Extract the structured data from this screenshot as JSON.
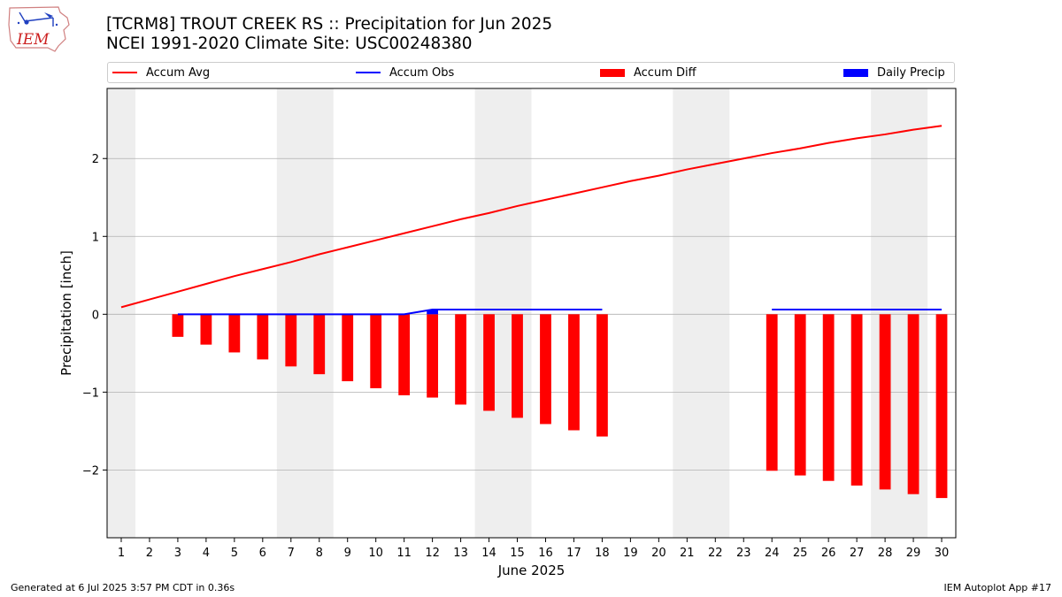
{
  "header": {
    "title": "[TCRM8] TROUT CREEK RS :: Precipitation for Jun 2025",
    "subtitle": "NCEI 1991-2020 Climate Site: USC00248380",
    "logo_text": "IEM"
  },
  "legend": {
    "items": [
      {
        "label": "Accum Avg",
        "kind": "line",
        "color": "#ff0000"
      },
      {
        "label": "Accum Obs",
        "kind": "line",
        "color": "#0000ff"
      },
      {
        "label": "Accum Diff",
        "kind": "box",
        "color": "#ff0000"
      },
      {
        "label": "Daily Precip",
        "kind": "box",
        "color": "#0000ff"
      }
    ]
  },
  "footer": {
    "left": "Generated at 6 Jul 2025 3:57 PM CDT in 0.36s",
    "right": "IEM Autoplot App #17"
  },
  "chart_data": {
    "type": "bar",
    "xlabel": "June 2025",
    "ylabel": "Precipitation [inch]",
    "xlim": [
      0.5,
      30.5
    ],
    "ylim": [
      -2.87,
      2.9
    ],
    "yticks": [
      -2,
      -1,
      0,
      1,
      2
    ],
    "ytick_labels": [
      "−2",
      "−1",
      "0",
      "1",
      "2"
    ],
    "categories": [
      "1",
      "2",
      "3",
      "4",
      "5",
      "6",
      "7",
      "8",
      "9",
      "10",
      "11",
      "12",
      "13",
      "14",
      "15",
      "16",
      "17",
      "18",
      "19",
      "20",
      "21",
      "22",
      "23",
      "24",
      "25",
      "26",
      "27",
      "28",
      "29",
      "30"
    ],
    "grid": "y",
    "legend_placement": "top",
    "weekend_shading": [
      [
        0.5,
        1.5
      ],
      [
        6.5,
        8.5
      ],
      [
        13.5,
        15.5
      ],
      [
        20.5,
        22.5
      ],
      [
        27.5,
        29.5
      ]
    ],
    "colors": {
      "avg": "#ff0000",
      "obs": "#0000ff",
      "diff": "#ff0000",
      "daily": "#0000ff",
      "shade": "#eeeeee",
      "grid": "#b0b0b0"
    },
    "series": [
      {
        "name": "Accum Avg",
        "type": "line",
        "x": [
          1,
          2,
          3,
          4,
          5,
          6,
          7,
          8,
          9,
          10,
          11,
          12,
          13,
          14,
          15,
          16,
          17,
          18,
          19,
          20,
          21,
          22,
          23,
          24,
          25,
          26,
          27,
          28,
          29,
          30
        ],
        "values": [
          0.09,
          0.19,
          0.29,
          0.39,
          0.49,
          0.58,
          0.67,
          0.77,
          0.86,
          0.95,
          1.04,
          1.13,
          1.22,
          1.3,
          1.39,
          1.47,
          1.55,
          1.63,
          1.71,
          1.78,
          1.86,
          1.93,
          2.0,
          2.07,
          2.13,
          2.2,
          2.26,
          2.31,
          2.37,
          2.42
        ]
      },
      {
        "name": "Accum Obs",
        "type": "line",
        "segments": [
          {
            "x": [
              3,
              4,
              5,
              6,
              7,
              8,
              9,
              10,
              11,
              12,
              13,
              14,
              15,
              16,
              17,
              18
            ],
            "values": [
              0,
              0,
              0,
              0,
              0,
              0,
              0,
              0,
              0,
              0.06,
              0.06,
              0.06,
              0.06,
              0.06,
              0.06,
              0.06
            ]
          },
          {
            "x": [
              24,
              25,
              26,
              27,
              28,
              29,
              30
            ],
            "values": [
              0.06,
              0.06,
              0.06,
              0.06,
              0.06,
              0.06,
              0.06
            ]
          }
        ]
      },
      {
        "name": "Accum Diff",
        "type": "bar",
        "x": [
          3,
          4,
          5,
          6,
          7,
          8,
          9,
          10,
          11,
          12,
          13,
          14,
          15,
          16,
          17,
          18,
          24,
          25,
          26,
          27,
          28,
          29,
          30
        ],
        "values": [
          -0.29,
          -0.39,
          -0.49,
          -0.58,
          -0.67,
          -0.77,
          -0.86,
          -0.95,
          -1.04,
          -1.07,
          -1.16,
          -1.24,
          -1.33,
          -1.41,
          -1.49,
          -1.57,
          -2.01,
          -2.07,
          -2.14,
          -2.2,
          -2.25,
          -2.31,
          -2.36
        ]
      },
      {
        "name": "Daily Precip",
        "type": "bar",
        "x": [
          12
        ],
        "values": [
          0.06
        ]
      }
    ]
  }
}
